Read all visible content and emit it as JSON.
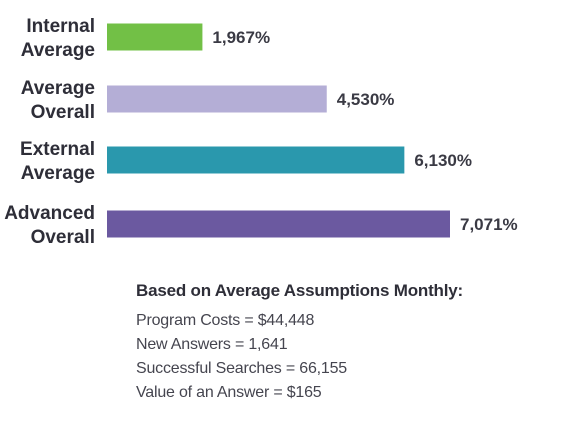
{
  "chart_data": {
    "type": "bar",
    "orientation": "horizontal",
    "categories": [
      "Internal Average",
      "Average Overall",
      "External Average",
      "Advanced Overall"
    ],
    "category_lines": [
      [
        "Internal",
        "Average"
      ],
      [
        "Average",
        "Overall"
      ],
      [
        "External",
        "Average"
      ],
      [
        "Advanced",
        "Overall"
      ]
    ],
    "values": [
      1967,
      4530,
      6130,
      7071
    ],
    "value_labels": [
      "1,967%",
      "4,530%",
      "6,130%",
      "7,071%"
    ],
    "unit": "%",
    "colors": [
      "#72c046",
      "#b4aed6",
      "#2a98ad",
      "#6b59a0"
    ],
    "title": "",
    "xlabel": "",
    "ylabel": "",
    "grid": false,
    "legend": "none"
  },
  "notes": {
    "heading": "Based on Average Assumptions Monthly:",
    "lines": [
      "Program Costs = $44,448",
      "New Answers = 1,641",
      "Successful Searches = 66,155",
      "Value of an Answer = $165"
    ]
  }
}
